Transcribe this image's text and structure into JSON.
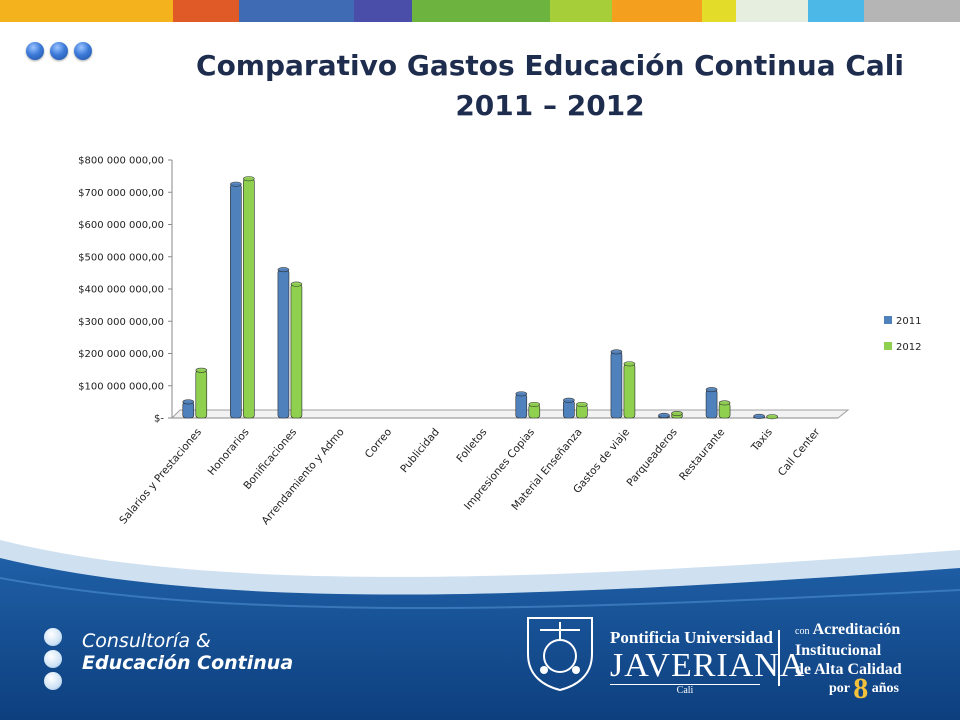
{
  "header": {
    "stripe_colors": [
      "#f4b21d",
      "#e05a27",
      "#3f6ab4",
      "#4a4ea8",
      "#6db33f",
      "#a6ce39",
      "#f49f1e",
      "#e3dd2a",
      "#e6eee0",
      "#4bb8e8",
      "#b5b5b5"
    ],
    "title_line1": "Comparativo Gastos Educación Continua Cali",
    "title_line2": "2011 – 2012"
  },
  "chart_data": {
    "type": "bar",
    "categories": [
      "Salarios y Prestaciones",
      "Honorarios",
      "Bonificaciones",
      "Arrendamiento y Admo",
      "Correo",
      "Publicidad",
      "Folletos",
      "Impresiones Copias",
      "Material Enseñanza",
      "Gastos de viaje",
      "Parqueaderos",
      "Restaurante",
      "Taxis",
      "Call Center"
    ],
    "series": [
      {
        "name": "2011",
        "color": "#4f81bd",
        "values": [
          50000000,
          725000000,
          460000000,
          0,
          0,
          0,
          0,
          75000000,
          55000000,
          205000000,
          8000000,
          88000000,
          5000000,
          0
        ]
      },
      {
        "name": "2012",
        "color": "#8fd14f",
        "values": [
          148000000,
          742000000,
          415000000,
          0,
          0,
          0,
          0,
          42000000,
          42000000,
          168000000,
          14000000,
          47000000,
          4000000,
          0
        ]
      }
    ],
    "yticks": [
      "$-",
      "$100 000 000,00",
      "$200 000 000,00",
      "$300 000 000,00",
      "$400 000 000,00",
      "$500 000 000,00",
      "$600 000 000,00",
      "$700 000 000,00",
      "$800 000 000,00"
    ],
    "ylim": [
      0,
      800000000
    ],
    "grid": false,
    "legend_position": "right"
  },
  "footer": {
    "consult_line1": "Consultoría &",
    "consult_line2": "Educación Continua",
    "puj_line1": "Pontificia Universidad",
    "puj_line2": "JAVERIANA",
    "puj_line3": "Cali",
    "acred_con": "con",
    "acred_line1": "Acreditación",
    "acred_line2": "Institucional",
    "acred_line3": "de Alta Calidad",
    "acred_por": "por",
    "acred_num": "8",
    "acred_anos": "años"
  }
}
